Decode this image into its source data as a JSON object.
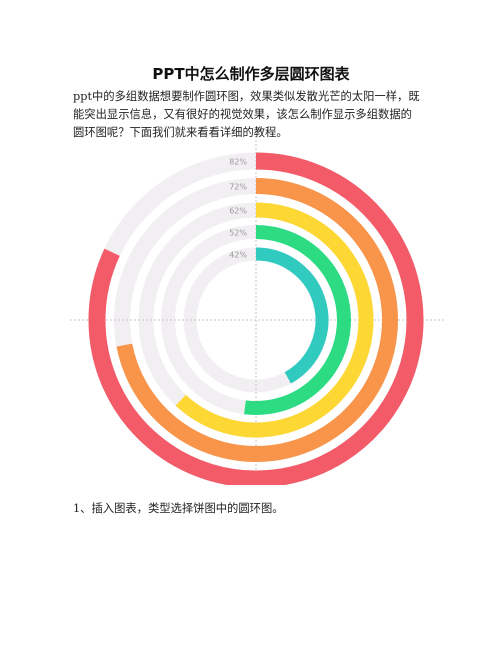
{
  "document": {
    "title": "PPT中怎么制作多层圆环图表",
    "intro_lines": [
      "ppt中的多组数据想要制作圆环图，效果类似发散光芒的太阳一样，既",
      "能突出显示信息，又有很好的视觉效果，该怎么制作显示多组数据的",
      "圆环图呢？下面我们就来看看详细的教程。"
    ],
    "step_1": "1、插入图表，类型选择饼图中的圆环图。"
  },
  "chart_data": {
    "type": "radial-bar",
    "series": [
      {
        "label": "82%",
        "value": 82,
        "color": "#f45b69"
      },
      {
        "label": "72%",
        "value": 72,
        "color": "#f8954a"
      },
      {
        "label": "62%",
        "value": 62,
        "color": "#fdd835"
      },
      {
        "label": "52%",
        "value": 52,
        "color": "#2ddc82"
      },
      {
        "label": "42%",
        "value": 42,
        "color": "#30cabf"
      }
    ],
    "track_color": "#f2eff3",
    "crosshair": true
  }
}
